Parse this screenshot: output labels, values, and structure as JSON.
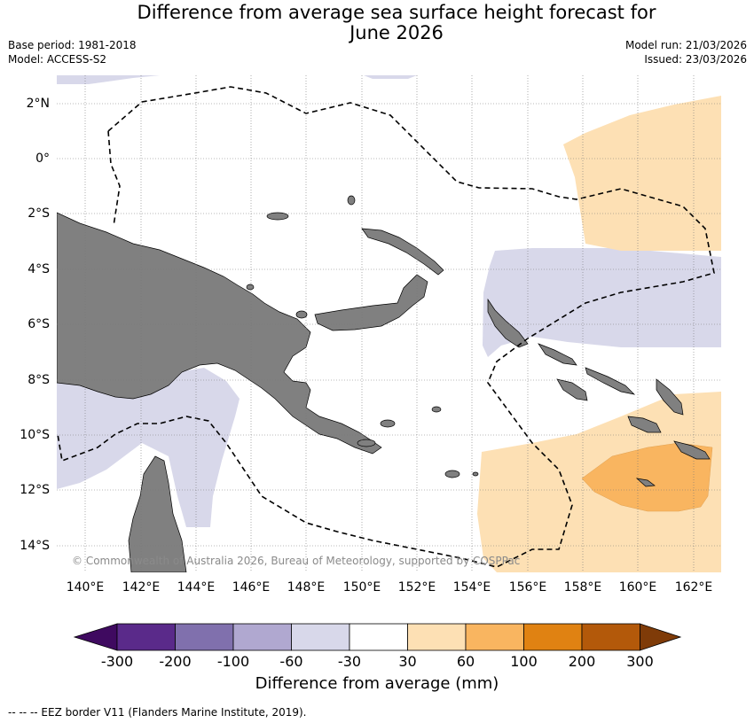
{
  "title_line1": "Difference from average sea surface height forecast for",
  "title_line2": "June 2026",
  "base_period": "Base period: 1981-2018",
  "model": "Model: ACCESS-S2",
  "model_run": "Model run: 21/03/2026",
  "issued": "Issued: 23/03/2026",
  "lat_labels": [
    "2°N",
    "0°",
    "2°S",
    "4°S",
    "6°S",
    "8°S",
    "10°S",
    "12°S",
    "14°S"
  ],
  "lon_labels": [
    "140°E",
    "142°E",
    "144°E",
    "146°E",
    "148°E",
    "150°E",
    "152°E",
    "154°E",
    "156°E",
    "158°E",
    "160°E",
    "162°E"
  ],
  "copyright": "© Commonwealth of Australia 2026, Bureau of Meteorology, supported by COSPPac",
  "colorbar": {
    "title": "Difference from average (mm)",
    "labels": [
      "-300",
      "-200",
      "-100",
      "-60",
      "-30",
      "30",
      "60",
      "100",
      "200",
      "300"
    ],
    "colors": [
      "#3f0a60",
      "#5a2a8a",
      "#8070ad",
      "#b0a8d0",
      "#d8d8ea",
      "#ffffff",
      "#fde0b4",
      "#f9b560",
      "#e08212",
      "#b3590a",
      "#7f3b08"
    ]
  },
  "footer": "--  --  -- EEZ border V11 (Flanders Marine Institute, 2019).",
  "colors": {
    "land": "#808080",
    "ocean": "#ffffff",
    "neg_light": "#d8d8ea",
    "pos_light": "#fde0b4",
    "pos_mid": "#f9b560"
  }
}
